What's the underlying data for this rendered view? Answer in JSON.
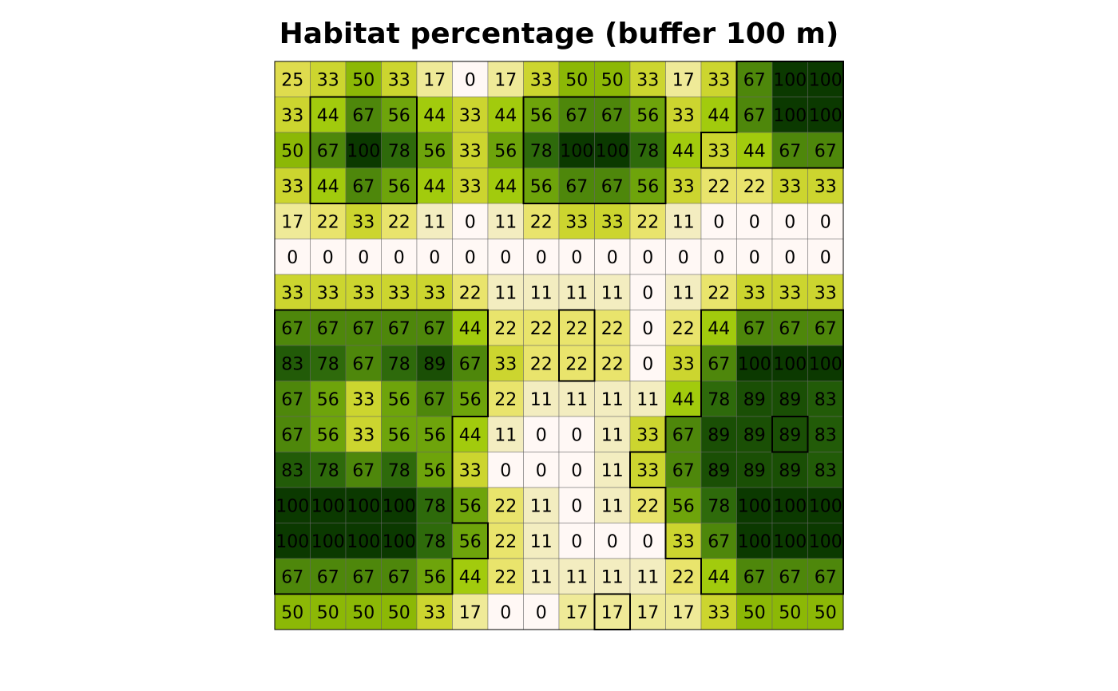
{
  "chart_data": {
    "type": "heatmap",
    "title": "Habitat percentage (buffer 100 m)",
    "rows": 16,
    "cols": 16,
    "values": [
      [
        25,
        33,
        50,
        33,
        17,
        0,
        17,
        33,
        50,
        50,
        33,
        17,
        33,
        67,
        100,
        100
      ],
      [
        33,
        44,
        67,
        56,
        44,
        33,
        44,
        56,
        67,
        67,
        56,
        33,
        44,
        67,
        100,
        100
      ],
      [
        50,
        67,
        100,
        78,
        56,
        33,
        56,
        78,
        100,
        100,
        78,
        44,
        33,
        44,
        67,
        67
      ],
      [
        33,
        44,
        67,
        56,
        44,
        33,
        44,
        56,
        67,
        67,
        56,
        33,
        22,
        22,
        33,
        33
      ],
      [
        17,
        22,
        33,
        22,
        11,
        0,
        11,
        22,
        33,
        33,
        22,
        11,
        0,
        0,
        0,
        0
      ],
      [
        0,
        0,
        0,
        0,
        0,
        0,
        0,
        0,
        0,
        0,
        0,
        0,
        0,
        0,
        0,
        0
      ],
      [
        33,
        33,
        33,
        33,
        33,
        22,
        11,
        11,
        11,
        11,
        0,
        11,
        22,
        33,
        33,
        33
      ],
      [
        67,
        67,
        67,
        67,
        67,
        44,
        22,
        22,
        22,
        22,
        0,
        22,
        44,
        67,
        67,
        67
      ],
      [
        83,
        78,
        67,
        78,
        89,
        67,
        33,
        22,
        22,
        22,
        0,
        33,
        67,
        100,
        100,
        100
      ],
      [
        67,
        56,
        33,
        56,
        67,
        56,
        22,
        11,
        11,
        11,
        11,
        44,
        78,
        89,
        89,
        83
      ],
      [
        67,
        56,
        33,
        56,
        56,
        44,
        11,
        0,
        0,
        11,
        33,
        67,
        89,
        89,
        89,
        83
      ],
      [
        83,
        78,
        67,
        78,
        56,
        33,
        0,
        0,
        0,
        11,
        33,
        67,
        89,
        89,
        89,
        83
      ],
      [
        100,
        100,
        100,
        100,
        78,
        56,
        22,
        11,
        0,
        11,
        22,
        56,
        78,
        100,
        100,
        100
      ],
      [
        100,
        100,
        100,
        100,
        78,
        56,
        22,
        11,
        0,
        0,
        0,
        33,
        67,
        100,
        100,
        100
      ],
      [
        67,
        67,
        67,
        67,
        56,
        44,
        22,
        11,
        11,
        11,
        11,
        22,
        44,
        67,
        67,
        67
      ],
      [
        50,
        50,
        50,
        50,
        33,
        17,
        0,
        0,
        17,
        17,
        17,
        17,
        33,
        50,
        50,
        50
      ]
    ],
    "habitat_mask": [
      [
        0,
        0,
        0,
        0,
        0,
        0,
        0,
        0,
        0,
        0,
        0,
        0,
        0,
        1,
        1,
        1
      ],
      [
        0,
        1,
        1,
        1,
        0,
        0,
        0,
        1,
        1,
        1,
        1,
        0,
        0,
        1,
        1,
        1
      ],
      [
        0,
        1,
        1,
        1,
        0,
        0,
        0,
        1,
        1,
        1,
        1,
        0,
        1,
        1,
        1,
        1
      ],
      [
        0,
        1,
        1,
        1,
        0,
        0,
        0,
        1,
        1,
        1,
        1,
        0,
        0,
        0,
        0,
        0
      ],
      [
        0,
        0,
        0,
        0,
        0,
        0,
        0,
        0,
        0,
        0,
        0,
        0,
        0,
        0,
        0,
        0
      ],
      [
        0,
        0,
        0,
        0,
        0,
        0,
        0,
        0,
        0,
        0,
        0,
        0,
        0,
        0,
        0,
        0
      ],
      [
        0,
        0,
        0,
        0,
        0,
        0,
        0,
        0,
        0,
        0,
        0,
        0,
        0,
        0,
        0,
        0
      ],
      [
        1,
        1,
        1,
        1,
        1,
        1,
        0,
        0,
        1,
        0,
        0,
        0,
        1,
        1,
        1,
        1
      ],
      [
        1,
        1,
        1,
        1,
        1,
        1,
        0,
        0,
        1,
        0,
        0,
        0,
        1,
        1,
        1,
        1
      ],
      [
        1,
        1,
        1,
        1,
        1,
        1,
        0,
        0,
        0,
        0,
        0,
        0,
        1,
        1,
        1,
        1
      ],
      [
        1,
        1,
        1,
        1,
        1,
        0,
        0,
        0,
        0,
        0,
        0,
        1,
        1,
        1,
        0,
        1
      ],
      [
        1,
        1,
        1,
        1,
        1,
        0,
        0,
        0,
        0,
        0,
        1,
        1,
        1,
        1,
        1,
        1
      ],
      [
        1,
        1,
        1,
        1,
        1,
        0,
        0,
        0,
        0,
        0,
        0,
        1,
        1,
        1,
        1,
        1
      ],
      [
        1,
        1,
        1,
        1,
        1,
        1,
        0,
        0,
        0,
        0,
        0,
        1,
        1,
        1,
        1,
        1
      ],
      [
        1,
        1,
        1,
        1,
        1,
        0,
        0,
        0,
        0,
        0,
        0,
        0,
        1,
        1,
        1,
        1
      ],
      [
        0,
        0,
        0,
        0,
        0,
        0,
        0,
        0,
        0,
        1,
        0,
        0,
        0,
        0,
        0,
        0
      ]
    ],
    "color_scale": [
      {
        "v": 0,
        "c": "#fff8f5"
      },
      {
        "v": 11,
        "c": "#f3edc0"
      },
      {
        "v": 17,
        "c": "#efea98"
      },
      {
        "v": 22,
        "c": "#e9e46c"
      },
      {
        "v": 25,
        "c": "#dfdc4e"
      },
      {
        "v": 33,
        "c": "#ccd52f"
      },
      {
        "v": 44,
        "c": "#a2cb0d"
      },
      {
        "v": 50,
        "c": "#8cb806"
      },
      {
        "v": 56,
        "c": "#6ea40b"
      },
      {
        "v": 67,
        "c": "#4e870b"
      },
      {
        "v": 78,
        "c": "#2e6a0b"
      },
      {
        "v": 83,
        "c": "#225b08"
      },
      {
        "v": 89,
        "c": "#1a4f05"
      },
      {
        "v": 100,
        "c": "#0b3900"
      }
    ],
    "grid": true,
    "legend": "none"
  }
}
